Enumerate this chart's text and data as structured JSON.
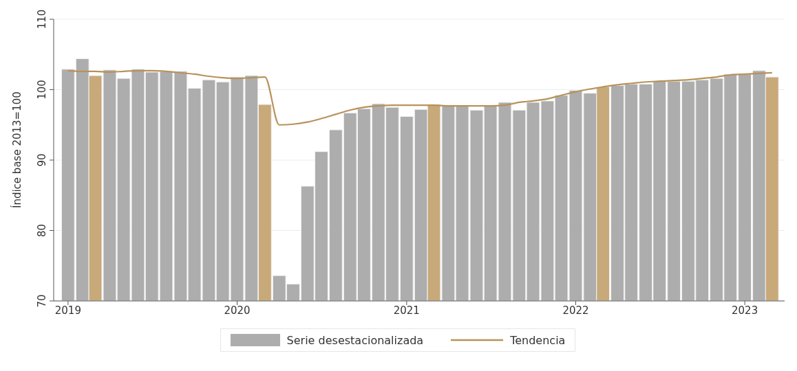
{
  "chart_data": {
    "type": "bar",
    "ylabel": "Índice base 2013=100",
    "x": [
      "2019-01",
      "2019-02",
      "2019-03",
      "2019-04",
      "2019-05",
      "2019-06",
      "2019-07",
      "2019-08",
      "2019-09",
      "2019-10",
      "2019-11",
      "2019-12",
      "2020-01",
      "2020-02",
      "2020-03",
      "2020-04",
      "2020-05",
      "2020-06",
      "2020-07",
      "2020-08",
      "2020-09",
      "2020-10",
      "2020-11",
      "2020-12",
      "2021-01",
      "2021-02",
      "2021-03",
      "2021-04",
      "2021-05",
      "2021-06",
      "2021-07",
      "2021-08",
      "2021-09",
      "2021-10",
      "2021-11",
      "2021-12",
      "2022-01",
      "2022-02",
      "2022-03",
      "2022-04",
      "2022-05",
      "2022-06",
      "2022-07",
      "2022-08",
      "2022-09",
      "2022-10",
      "2022-11",
      "2022-12",
      "2023-01",
      "2023-02",
      "2023-03"
    ],
    "series": [
      {
        "name": "Serie desestacionalizada",
        "color": "#adadad",
        "values": [
          102.9,
          104.4,
          102.0,
          102.8,
          101.6,
          102.9,
          102.5,
          102.6,
          102.6,
          100.2,
          101.4,
          101.1,
          101.8,
          102.0,
          97.9,
          73.6,
          72.4,
          86.3,
          91.2,
          94.3,
          96.7,
          97.3,
          98.0,
          97.5,
          96.2,
          97.2,
          97.9,
          97.8,
          97.7,
          97.1,
          97.7,
          98.2,
          97.1,
          98.2,
          98.4,
          99.2,
          99.9,
          99.5,
          100.4,
          100.6,
          100.8,
          100.8,
          101.2,
          101.2,
          101.2,
          101.4,
          101.6,
          102.2,
          102.2,
          102.7,
          101.8
        ],
        "colors": [
          "#adadad",
          "#adadad",
          "#c8a97a",
          "#adadad",
          "#adadad",
          "#adadad",
          "#adadad",
          "#adadad",
          "#adadad",
          "#adadad",
          "#adadad",
          "#adadad",
          "#adadad",
          "#adadad",
          "#c8a97a",
          "#adadad",
          "#adadad",
          "#adadad",
          "#adadad",
          "#adadad",
          "#adadad",
          "#adadad",
          "#adadad",
          "#adadad",
          "#adadad",
          "#adadad",
          "#c8a97a",
          "#adadad",
          "#adadad",
          "#adadad",
          "#adadad",
          "#adadad",
          "#adadad",
          "#adadad",
          "#adadad",
          "#adadad",
          "#adadad",
          "#adadad",
          "#c8a97a",
          "#adadad",
          "#adadad",
          "#adadad",
          "#adadad",
          "#adadad",
          "#adadad",
          "#adadad",
          "#adadad",
          "#adadad",
          "#adadad",
          "#adadad",
          "#c8a97a"
        ]
      },
      {
        "name": "Tendencia",
        "type": "line",
        "color": "#b8925a",
        "values": [
          102.7,
          102.6,
          102.6,
          102.5,
          102.6,
          102.7,
          102.7,
          102.6,
          102.4,
          102.2,
          101.9,
          101.7,
          101.6,
          101.7,
          101.8,
          95.0,
          95.1,
          95.4,
          95.9,
          96.5,
          97.1,
          97.5,
          97.7,
          97.8,
          97.8,
          97.8,
          97.8,
          97.7,
          97.7,
          97.7,
          97.7,
          97.8,
          98.2,
          98.4,
          98.7,
          99.2,
          99.7,
          100.1,
          100.4,
          100.7,
          100.9,
          101.1,
          101.2,
          101.3,
          101.4,
          101.6,
          101.8,
          102.1,
          102.2,
          102.3,
          102.4
        ]
      }
    ],
    "xlim": [
      "2018-12-01",
      "2023-03-28"
    ],
    "xticks": [
      "2019",
      "2020",
      "2021",
      "2022",
      "2023"
    ],
    "ylim": [
      70,
      110
    ],
    "yticks": [
      70,
      80,
      90,
      100,
      110
    ],
    "grid": "y",
    "legend": "bottom"
  }
}
